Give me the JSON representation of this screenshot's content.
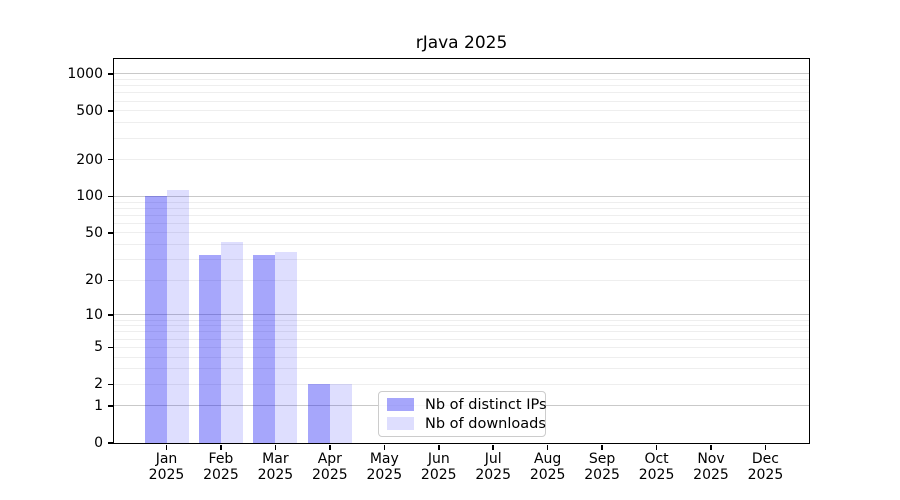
{
  "title": "rJava 2025",
  "chart_data": {
    "type": "bar",
    "title": "rJava 2025",
    "xlabel": "",
    "ylabel": "",
    "yscale": "log1p",
    "ylim": [
      0,
      1400
    ],
    "categories": [
      "Jan 2025",
      "Feb 2025",
      "Mar 2025",
      "Apr 2025",
      "May 2025",
      "Jun 2025",
      "Jul 2025",
      "Aug 2025",
      "Sep 2025",
      "Oct 2025",
      "Nov 2025",
      "Dec 2025"
    ],
    "series": [
      {
        "name": "Nb of distinct IPs",
        "color": "rgba(20,20,245,0.38)",
        "values": [
          101,
          33,
          33,
          2,
          0,
          0,
          0,
          0,
          0,
          0,
          0,
          0
        ]
      },
      {
        "name": "Nb of downloads",
        "color": "rgba(20,20,245,0.14)",
        "values": [
          113,
          42,
          35,
          2,
          0,
          0,
          0,
          0,
          0,
          0,
          0,
          0
        ]
      }
    ],
    "yticks": [
      0,
      1,
      2,
      5,
      10,
      20,
      50,
      100,
      200,
      500,
      1000
    ],
    "major_gridlines": [
      1,
      10,
      100,
      1000
    ],
    "minor_gridlines": [
      2,
      3,
      4,
      5,
      6,
      7,
      8,
      9,
      20,
      30,
      40,
      50,
      60,
      70,
      80,
      90,
      200,
      300,
      400,
      500,
      600,
      700,
      800,
      900
    ],
    "legend_position": "lower-center",
    "grid": true
  },
  "colors": {
    "major_grid": "#c9c9c9",
    "minor_grid": "#eeeeee",
    "spine": "#000000",
    "background": "#ffffff"
  }
}
